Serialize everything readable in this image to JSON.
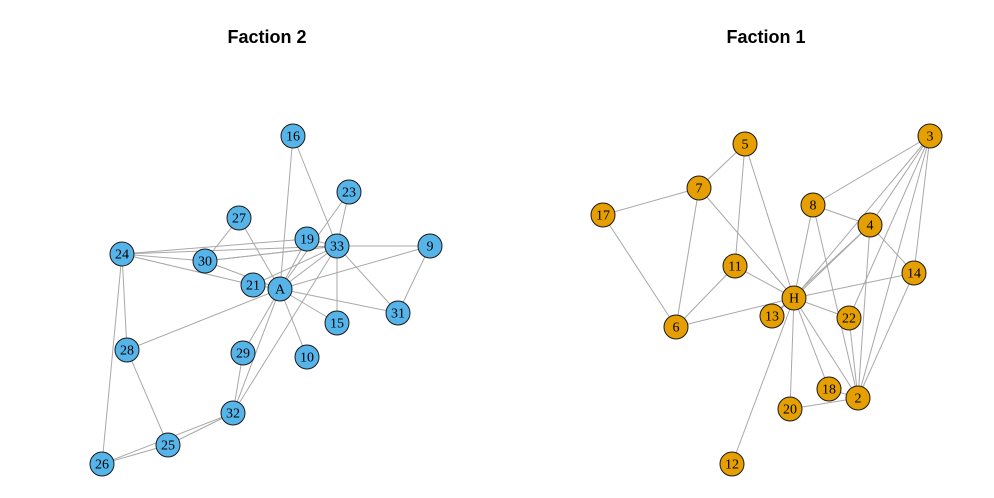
{
  "colors": {
    "faction2": "#56B4E9",
    "faction1": "#E69F00",
    "edge": "#a8a8a8"
  },
  "panels": [
    {
      "title": "Faction 2",
      "color": "#56B4E9",
      "nodes": [
        "16",
        "23",
        "27",
        "19",
        "33",
        "9",
        "24",
        "30",
        "21",
        "A",
        "31",
        "15",
        "28",
        "29",
        "10",
        "32",
        "25",
        "26"
      ],
      "edges": [
        [
          "16",
          "A"
        ],
        [
          "16",
          "33"
        ],
        [
          "23",
          "A"
        ],
        [
          "23",
          "33"
        ],
        [
          "27",
          "A"
        ],
        [
          "27",
          "30"
        ],
        [
          "19",
          "A"
        ],
        [
          "19",
          "33"
        ],
        [
          "33",
          "A"
        ],
        [
          "33",
          "9"
        ],
        [
          "33",
          "15"
        ],
        [
          "33",
          "31"
        ],
        [
          "33",
          "21"
        ],
        [
          "33",
          "32"
        ],
        [
          "33",
          "30"
        ],
        [
          "9",
          "A"
        ],
        [
          "9",
          "31"
        ],
        [
          "24",
          "30"
        ],
        [
          "24",
          "21"
        ],
        [
          "24",
          "28"
        ],
        [
          "24",
          "26"
        ],
        [
          "24",
          "33"
        ],
        [
          "24",
          "19"
        ],
        [
          "30",
          "A"
        ],
        [
          "30",
          "33"
        ],
        [
          "21",
          "A"
        ],
        [
          "A",
          "31"
        ],
        [
          "A",
          "15"
        ],
        [
          "A",
          "10"
        ],
        [
          "A",
          "28"
        ],
        [
          "A",
          "29"
        ],
        [
          "A",
          "32"
        ],
        [
          "28",
          "25"
        ],
        [
          "29",
          "32"
        ],
        [
          "32",
          "25"
        ],
        [
          "32",
          "26"
        ],
        [
          "25",
          "26"
        ]
      ]
    },
    {
      "title": "Faction 1",
      "color": "#E69F00",
      "nodes": [
        "5",
        "3",
        "7",
        "17",
        "8",
        "4",
        "11",
        "14",
        "H",
        "13",
        "22",
        "6",
        "18",
        "2",
        "20",
        "12"
      ],
      "edges": [
        [
          "5",
          "7"
        ],
        [
          "5",
          "H"
        ],
        [
          "5",
          "11"
        ],
        [
          "7",
          "17"
        ],
        [
          "7",
          "6"
        ],
        [
          "7",
          "H"
        ],
        [
          "17",
          "6"
        ],
        [
          "11",
          "H"
        ],
        [
          "11",
          "6"
        ],
        [
          "6",
          "H"
        ],
        [
          "H",
          "13"
        ],
        [
          "H",
          "4"
        ],
        [
          "H",
          "8"
        ],
        [
          "H",
          "3"
        ],
        [
          "H",
          "14"
        ],
        [
          "H",
          "22"
        ],
        [
          "H",
          "2"
        ],
        [
          "H",
          "18"
        ],
        [
          "H",
          "20"
        ],
        [
          "H",
          "12"
        ],
        [
          "8",
          "4"
        ],
        [
          "8",
          "3"
        ],
        [
          "8",
          "2"
        ],
        [
          "4",
          "3"
        ],
        [
          "4",
          "14"
        ],
        [
          "4",
          "2"
        ],
        [
          "4",
          "13"
        ],
        [
          "3",
          "14"
        ],
        [
          "3",
          "2"
        ],
        [
          "3",
          "22"
        ],
        [
          "14",
          "2"
        ],
        [
          "22",
          "2"
        ],
        [
          "18",
          "2"
        ],
        [
          "20",
          "2"
        ]
      ]
    }
  ]
}
